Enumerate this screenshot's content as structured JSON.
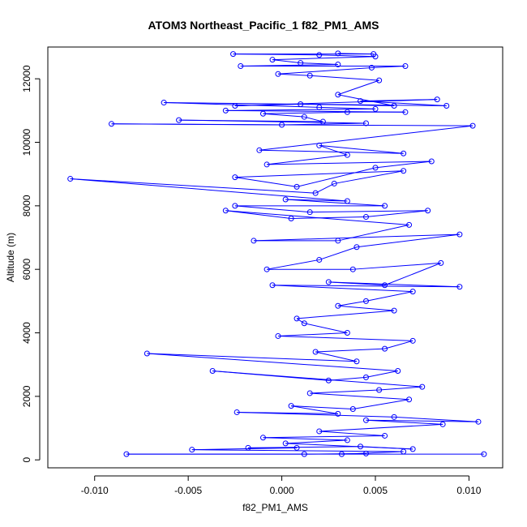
{
  "chart_data": {
    "type": "scatter",
    "title": "ATOM3 Northeast_Pacific_1 f82_PM1_AMS",
    "xlabel": "f82_PM1_AMS",
    "ylabel": "Altitude (m)",
    "xlim": [
      -0.0125,
      0.0118
    ],
    "ylim": [
      -250,
      13000
    ],
    "xticks": [
      -0.01,
      -0.005,
      0.0,
      0.005,
      0.01
    ],
    "xtick_labels": [
      "-0.010",
      "-0.005",
      "0.000",
      "0.005",
      "0.010"
    ],
    "yticks": [
      0,
      2000,
      4000,
      6000,
      8000,
      10000,
      12000
    ],
    "ytick_labels": [
      "0",
      "2000",
      "4000",
      "6000",
      "8000",
      "10000",
      "12000"
    ],
    "grid": false,
    "legend": "none",
    "color": "#0000ff",
    "marker": "open-circle",
    "series": [
      {
        "points": [
          [
            0.0108,
            180
          ],
          [
            -0.0083,
            180
          ],
          [
            0.0012,
            180
          ],
          [
            0.0045,
            200
          ],
          [
            0.0032,
            180
          ],
          [
            0.0065,
            260
          ],
          [
            -0.0048,
            320
          ],
          [
            0.0008,
            380
          ],
          [
            -0.0018,
            380
          ],
          [
            0.0042,
            420
          ],
          [
            0.007,
            340
          ],
          [
            0.0002,
            520
          ],
          [
            0.0035,
            620
          ],
          [
            -0.001,
            700
          ],
          [
            0.0055,
            760
          ],
          [
            0.002,
            900
          ],
          [
            0.0086,
            1120
          ],
          [
            0.0045,
            1250
          ],
          [
            0.0105,
            1200
          ],
          [
            0.006,
            1350
          ],
          [
            -0.0024,
            1500
          ],
          [
            0.003,
            1450
          ],
          [
            0.0005,
            1700
          ],
          [
            0.0038,
            1600
          ],
          [
            0.0068,
            1900
          ],
          [
            0.0015,
            2100
          ],
          [
            0.0052,
            2200
          ],
          [
            0.0075,
            2300
          ],
          [
            -0.0037,
            2800
          ],
          [
            0.0025,
            2500
          ],
          [
            0.0045,
            2600
          ],
          [
            0.0062,
            2800
          ],
          [
            -0.0072,
            3350
          ],
          [
            0.004,
            3100
          ],
          [
            0.0018,
            3400
          ],
          [
            0.0055,
            3500
          ],
          [
            0.007,
            3750
          ],
          [
            -0.0002,
            3900
          ],
          [
            0.0035,
            4000
          ],
          [
            0.0012,
            4300
          ],
          [
            0.0008,
            4450
          ],
          [
            0.006,
            4700
          ],
          [
            0.003,
            4850
          ],
          [
            0.0045,
            5000
          ],
          [
            0.007,
            5300
          ],
          [
            -0.0005,
            5500
          ],
          [
            0.0095,
            5450
          ],
          [
            0.0025,
            5600
          ],
          [
            0.0055,
            5500
          ],
          [
            0.0085,
            6200
          ],
          [
            0.0038,
            6000
          ],
          [
            -0.0008,
            6000
          ],
          [
            0.002,
            6300
          ],
          [
            0.004,
            6700
          ],
          [
            0.0095,
            7100
          ],
          [
            -0.0015,
            6900
          ],
          [
            0.003,
            6900
          ],
          [
            0.0068,
            7400
          ],
          [
            -0.003,
            7850
          ],
          [
            0.0005,
            7600
          ],
          [
            0.0045,
            7650
          ],
          [
            0.0078,
            7850
          ],
          [
            0.0015,
            7800
          ],
          [
            -0.0025,
            8000
          ],
          [
            0.0055,
            8000
          ],
          [
            0.0002,
            8200
          ],
          [
            0.0035,
            8150
          ],
          [
            -0.0113,
            8850
          ],
          [
            0.0018,
            8400
          ],
          [
            0.0028,
            8700
          ],
          [
            0.0065,
            9100
          ],
          [
            -0.0025,
            8900
          ],
          [
            0.0008,
            8600
          ],
          [
            0.005,
            9200
          ],
          [
            0.008,
            9400
          ],
          [
            -0.0008,
            9300
          ],
          [
            0.0035,
            9600
          ],
          [
            0.002,
            9900
          ],
          [
            0.0065,
            9650
          ],
          [
            -0.0012,
            9750
          ],
          [
            0.0102,
            10520
          ],
          [
            -0.0091,
            10580
          ],
          [
            0.0,
            10550
          ],
          [
            0.0045,
            10600
          ],
          [
            -0.0055,
            10700
          ],
          [
            0.0022,
            10650
          ],
          [
            0.0012,
            10800
          ],
          [
            -0.001,
            10900
          ],
          [
            0.0035,
            10950
          ],
          [
            0.0066,
            10950
          ],
          [
            -0.003,
            11000
          ],
          [
            0.005,
            11050
          ],
          [
            0.002,
            11100
          ],
          [
            -0.0063,
            11250
          ],
          [
            0.0088,
            11150
          ],
          [
            0.0042,
            11300
          ],
          [
            0.0083,
            11350
          ],
          [
            -0.0025,
            11150
          ],
          [
            0.001,
            11200
          ],
          [
            0.006,
            11150
          ],
          [
            0.003,
            11500
          ],
          [
            0.0052,
            11950
          ],
          [
            0.0015,
            12100
          ],
          [
            -0.0002,
            12150
          ],
          [
            0.0048,
            12350
          ],
          [
            0.0066,
            12400
          ],
          [
            -0.0022,
            12400
          ],
          [
            0.003,
            12450
          ],
          [
            0.001,
            12500
          ],
          [
            -0.0005,
            12600
          ],
          [
            0.005,
            12700
          ],
          [
            0.002,
            12750
          ],
          [
            -0.0026,
            12780
          ],
          [
            0.0049,
            12780
          ],
          [
            0.003,
            12800
          ]
        ]
      }
    ]
  }
}
